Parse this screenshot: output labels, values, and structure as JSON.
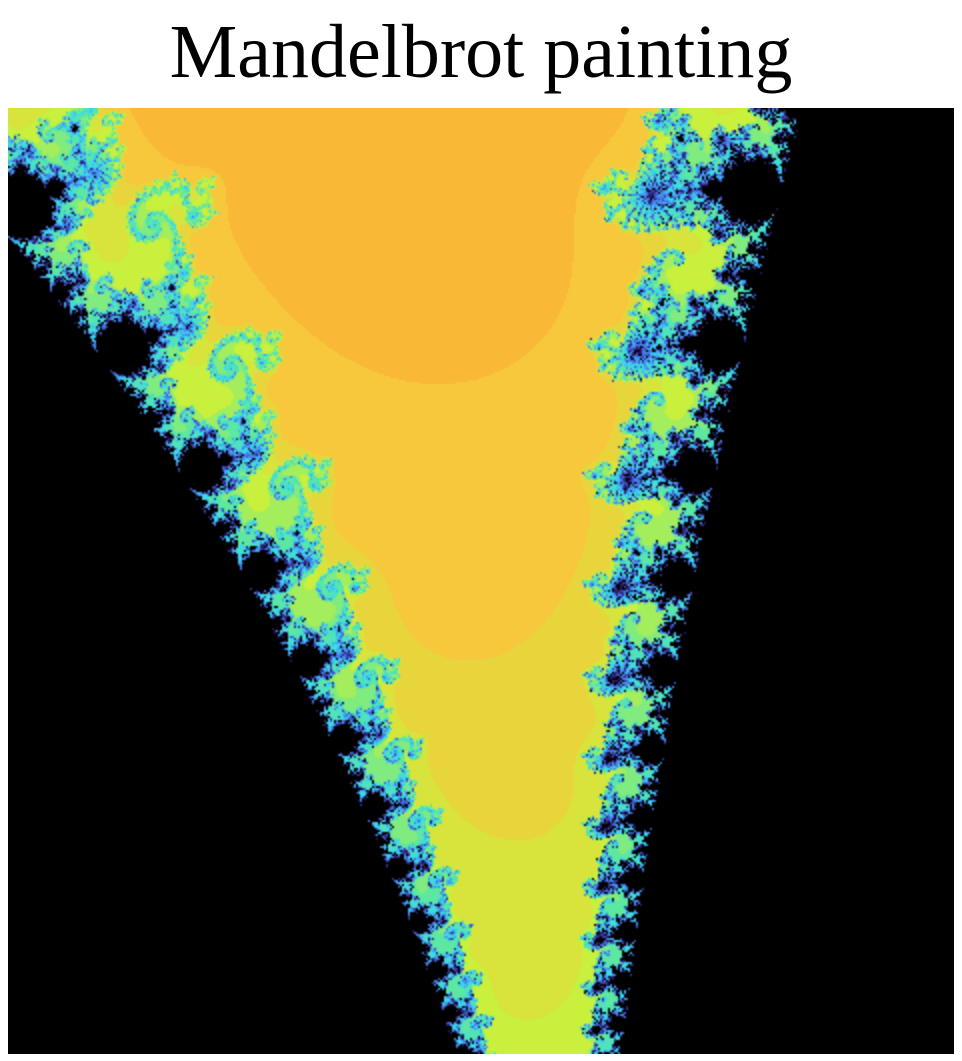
{
  "title": "Mandelbrot painting",
  "image": {
    "subject": "Mandelbrot set fractal",
    "palette": [
      "#7a0a00",
      "#c82a06",
      "#f06418",
      "#fb9a2c",
      "#f8c83c",
      "#c8f03c",
      "#5ce8a0",
      "#38d8f0",
      "#4a78f0",
      "#2a1e6e",
      "#000000"
    ],
    "set_color": "#000000"
  }
}
